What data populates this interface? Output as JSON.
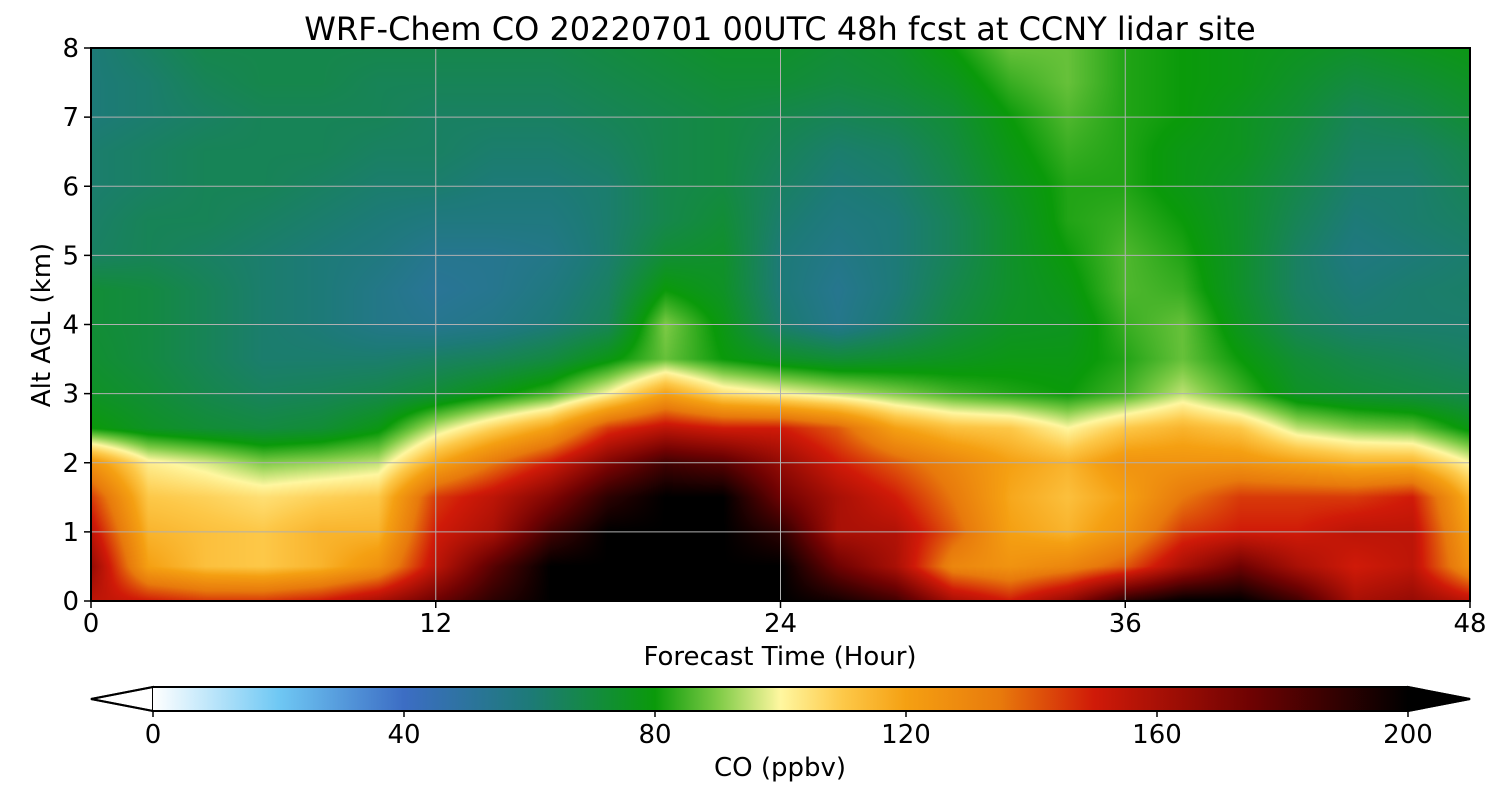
{
  "chart_data": {
    "type": "heatmap",
    "title": "WRF-Chem CO  20220701 00UTC 48h fcst at CCNY lidar site",
    "xlabel": "Forecast Time (Hour)",
    "ylabel": "Alt AGL (km)",
    "xlim": [
      0,
      48
    ],
    "ylim": [
      0,
      8
    ],
    "x_ticks": [
      0,
      12,
      24,
      36,
      48
    ],
    "x_tick_labels": [
      "0",
      "12",
      "24",
      "36",
      "48"
    ],
    "y_ticks": [
      0,
      1,
      2,
      3,
      4,
      5,
      6,
      7,
      8
    ],
    "y_tick_labels": [
      "0",
      "1",
      "2",
      "3",
      "4",
      "5",
      "6",
      "7",
      "8"
    ],
    "grid": true,
    "colorbar": {
      "label": "CO  (ppbv)",
      "orientation": "horizontal",
      "min": 0,
      "max": 200,
      "extend": "both",
      "ticks": [
        0,
        40,
        80,
        120,
        160,
        200
      ],
      "tick_labels": [
        "0",
        "40",
        "80",
        "120",
        "160",
        "200"
      ],
      "color_stops": [
        {
          "v": 0,
          "c": "#ffffff"
        },
        {
          "v": 20,
          "c": "#6fc8f4"
        },
        {
          "v": 40,
          "c": "#3c6dc4"
        },
        {
          "v": 60,
          "c": "#1d7a78"
        },
        {
          "v": 80,
          "c": "#0a9a0a"
        },
        {
          "v": 90,
          "c": "#7ecb46"
        },
        {
          "v": 100,
          "c": "#fff7a0"
        },
        {
          "v": 110,
          "c": "#fdc848"
        },
        {
          "v": 120,
          "c": "#f5a012"
        },
        {
          "v": 135,
          "c": "#e87a0c"
        },
        {
          "v": 150,
          "c": "#d01a08"
        },
        {
          "v": 175,
          "c": "#6e0202"
        },
        {
          "v": 200,
          "c": "#000000"
        }
      ]
    },
    "x": [
      0,
      2,
      4,
      6,
      8,
      10,
      12,
      14,
      16,
      18,
      20,
      22,
      24,
      26,
      28,
      30,
      32,
      34,
      36,
      38,
      40,
      42,
      44,
      46,
      48
    ],
    "y": [
      0,
      0.5,
      1,
      1.5,
      2,
      2.5,
      3,
      3.5,
      4,
      4.5,
      5,
      5.5,
      6,
      6.5,
      7,
      7.5,
      8
    ],
    "values": [
      [
        155,
        150,
        145,
        145,
        150,
        160,
        175,
        190,
        200,
        200,
        200,
        200,
        200,
        195,
        185,
        160,
        150,
        165,
        190,
        200,
        200,
        185,
        160,
        165,
        155
      ],
      [
        165,
        120,
        112,
        110,
        115,
        125,
        155,
        180,
        200,
        200,
        200,
        200,
        200,
        175,
        160,
        130,
        125,
        130,
        140,
        160,
        175,
        160,
        150,
        155,
        125
      ],
      [
        155,
        115,
        112,
        110,
        115,
        115,
        150,
        160,
        185,
        200,
        200,
        200,
        190,
        160,
        158,
        140,
        120,
        115,
        125,
        145,
        150,
        150,
        155,
        155,
        120
      ],
      [
        145,
        110,
        108,
        105,
        108,
        110,
        145,
        155,
        170,
        190,
        200,
        200,
        175,
        160,
        150,
        135,
        118,
        112,
        120,
        135,
        145,
        145,
        145,
        150,
        115
      ],
      [
        125,
        102,
        97,
        90,
        92,
        95,
        118,
        135,
        150,
        170,
        185,
        180,
        165,
        150,
        140,
        130,
        120,
        115,
        125,
        125,
        125,
        120,
        115,
        115,
        100
      ],
      [
        80,
        75,
        72,
        70,
        72,
        78,
        95,
        108,
        120,
        145,
        155,
        150,
        150,
        140,
        120,
        112,
        110,
        100,
        110,
        115,
        110,
        95,
        90,
        88,
        78
      ],
      [
        75,
        72,
        68,
        65,
        66,
        68,
        72,
        78,
        85,
        100,
        120,
        105,
        100,
        95,
        90,
        85,
        82,
        80,
        85,
        95,
        85,
        75,
        72,
        70,
        68
      ],
      [
        73,
        70,
        66,
        62,
        62,
        62,
        64,
        66,
        70,
        78,
        88,
        80,
        75,
        72,
        74,
        76,
        78,
        78,
        82,
        88,
        80,
        72,
        68,
        66,
        64
      ],
      [
        72,
        70,
        66,
        62,
        60,
        56,
        54,
        56,
        60,
        66,
        90,
        78,
        62,
        55,
        62,
        70,
        75,
        76,
        84,
        88,
        76,
        66,
        62,
        62,
        62
      ],
      [
        72,
        70,
        66,
        62,
        60,
        56,
        52,
        54,
        58,
        64,
        80,
        75,
        60,
        54,
        60,
        68,
        74,
        78,
        86,
        84,
        74,
        64,
        60,
        62,
        63
      ],
      [
        64,
        66,
        64,
        62,
        60,
        58,
        54,
        54,
        56,
        62,
        72,
        74,
        60,
        56,
        60,
        66,
        74,
        80,
        86,
        82,
        74,
        64,
        58,
        60,
        62
      ],
      [
        63,
        66,
        66,
        64,
        62,
        60,
        58,
        58,
        58,
        62,
        68,
        72,
        62,
        58,
        60,
        66,
        74,
        82,
        84,
        80,
        74,
        66,
        60,
        62,
        64
      ],
      [
        62,
        64,
        66,
        66,
        64,
        62,
        62,
        60,
        60,
        62,
        68,
        70,
        64,
        60,
        62,
        68,
        76,
        82,
        82,
        78,
        74,
        68,
        62,
        62,
        66
      ],
      [
        62,
        64,
        66,
        66,
        66,
        64,
        64,
        62,
        62,
        64,
        68,
        70,
        66,
        62,
        64,
        70,
        78,
        84,
        82,
        78,
        76,
        70,
        64,
        64,
        68
      ],
      [
        60,
        62,
        64,
        66,
        66,
        66,
        64,
        64,
        64,
        66,
        68,
        70,
        68,
        66,
        68,
        72,
        80,
        86,
        82,
        80,
        76,
        72,
        66,
        68,
        72
      ],
      [
        60,
        62,
        66,
        68,
        68,
        66,
        66,
        66,
        66,
        68,
        70,
        72,
        72,
        70,
        72,
        76,
        84,
        88,
        82,
        80,
        78,
        74,
        70,
        72,
        75
      ],
      [
        60,
        64,
        68,
        68,
        68,
        68,
        68,
        68,
        68,
        70,
        72,
        74,
        74,
        72,
        74,
        80,
        88,
        88,
        82,
        80,
        78,
        76,
        74,
        76,
        78
      ]
    ]
  }
}
